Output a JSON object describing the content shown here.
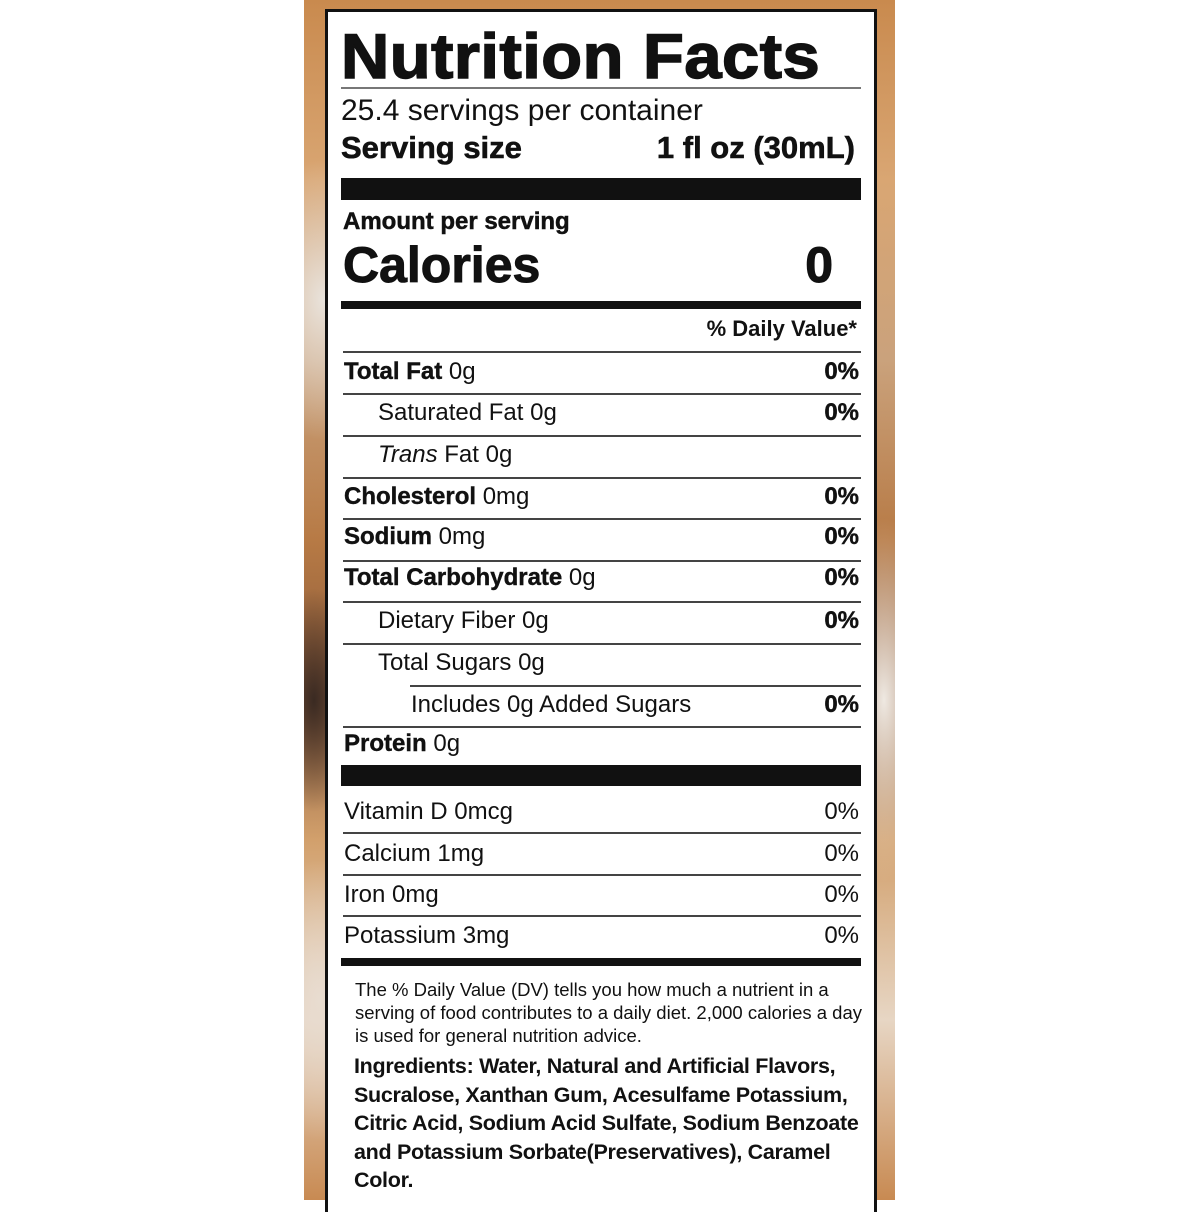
{
  "title": "Nutrition Facts",
  "servings_per_container": "25.4 servings per container",
  "serving_size": {
    "label": "Serving size",
    "value": "1 fl oz (30mL)"
  },
  "amount_per_serving": "Amount per serving",
  "calories": {
    "label": "Calories",
    "value": "0"
  },
  "daily_value_header": "% Daily Value*",
  "nutrients": [
    {
      "name": "Total Fat",
      "amount": "0g",
      "dv": "0%"
    },
    {
      "name": "Saturated Fat",
      "amount": "0g",
      "dv": "0%"
    },
    {
      "name": "Trans",
      "name_suffix": "Fat",
      "amount": "0g",
      "dv": ""
    },
    {
      "name": "Cholesterol",
      "amount": "0mg",
      "dv": "0%"
    },
    {
      "name": "Sodium",
      "amount": "0mg",
      "dv": "0%"
    },
    {
      "name": "Total Carbohydrate",
      "amount": "0g",
      "dv": "0%"
    },
    {
      "name": "Dietary Fiber",
      "amount": "0g",
      "dv": "0%"
    },
    {
      "name": "Total Sugars",
      "amount": "0g",
      "dv": ""
    },
    {
      "name": "Includes 0g Added Sugars",
      "amount": "",
      "dv": "0%"
    },
    {
      "name": "Protein",
      "amount": "0g",
      "dv": ""
    }
  ],
  "vitamins": [
    {
      "name": "Vitamin D",
      "amount": "0mcg",
      "dv": "0%"
    },
    {
      "name": "Calcium",
      "amount": "1mg",
      "dv": "0%"
    },
    {
      "name": "Iron",
      "amount": "0mg",
      "dv": "0%"
    },
    {
      "name": "Potassium",
      "amount": "3mg",
      "dv": "0%"
    }
  ],
  "footnote": "The % Daily Value (DV) tells you how much a nutrient in a serving of food contributes to a daily diet. 2,000 calories a day is used for general nutrition advice.",
  "ingredients": "Ingredients: Water, Natural and Artificial Flavors, Sucralose, Xanthan Gum, Acesulfame Potassium, Citric Acid, Sodium Acid Sulfate, Sodium Benzoate and Potassium Sorbate(Preservatives), Caramel Color."
}
